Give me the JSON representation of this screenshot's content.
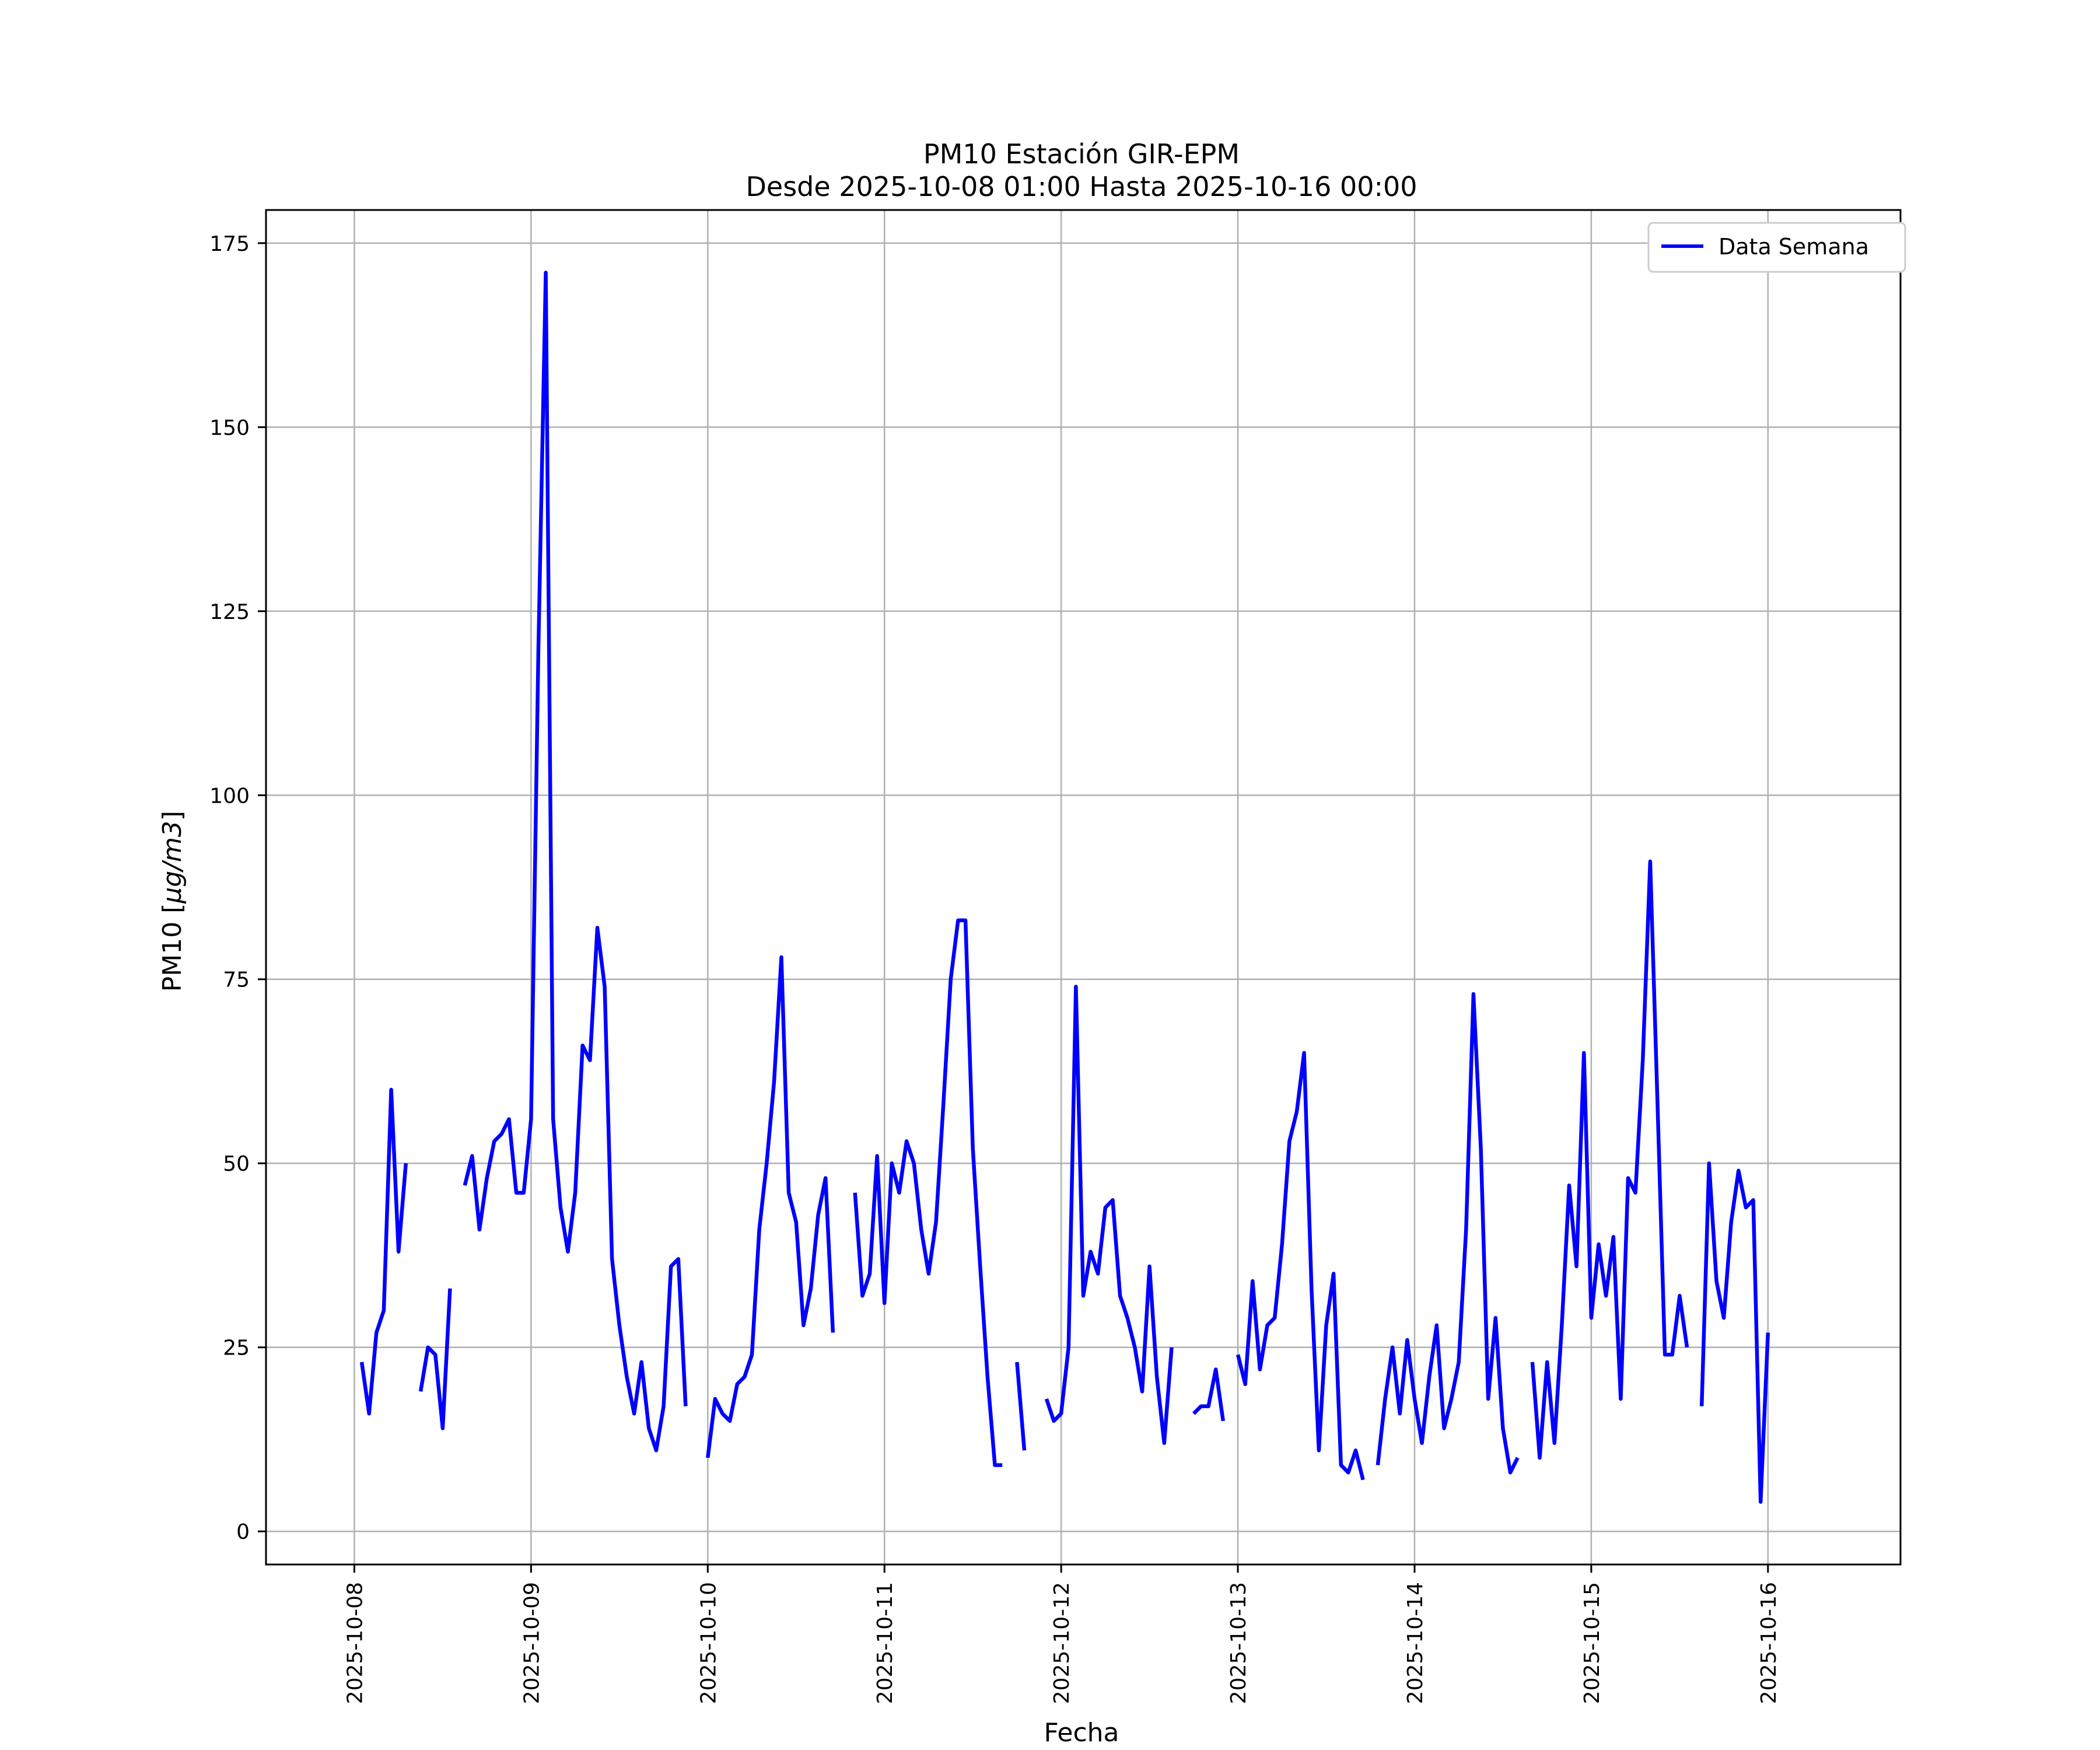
{
  "chart_data": {
    "type": "line",
    "title": "PM10 Estación GIR-EPM",
    "subtitle": "Desde 2025-10-08 01:00 Hasta 2025-10-16 00:00",
    "xlabel": "Fecha",
    "ylabel_prefix": "PM10 [",
    "ylabel_units": "μg/m3",
    "ylabel_suffix": "]",
    "x_ticks": [
      "2025-10-08",
      "2025-10-09",
      "2025-10-10",
      "2025-10-11",
      "2025-10-12",
      "2025-10-13",
      "2025-10-14",
      "2025-10-15",
      "2025-10-16"
    ],
    "y_ticks": [
      0,
      25,
      50,
      75,
      100,
      125,
      150,
      175
    ],
    "xlim": [
      "2025-10-07 12:00",
      "2025-10-16 18:00"
    ],
    "ylim": [
      -4.5,
      179.5
    ],
    "grid": true,
    "legend_position": "top-right",
    "series": [
      {
        "name": "Data Semana",
        "color": "#0000ff",
        "points": [
          [
            "2025-10-08 01:00",
            23
          ],
          [
            "2025-10-08 02:00",
            16
          ],
          [
            "2025-10-08 03:00",
            27
          ],
          [
            "2025-10-08 04:00",
            30
          ],
          [
            "2025-10-08 05:00",
            60
          ],
          [
            "2025-10-08 06:00",
            38
          ],
          [
            "2025-10-08 07:00",
            50
          ],
          [
            "2025-10-08 08:00",
            null
          ],
          [
            "2025-10-08 09:00",
            19
          ],
          [
            "2025-10-08 10:00",
            25
          ],
          [
            "2025-10-08 11:00",
            24
          ],
          [
            "2025-10-08 12:00",
            14
          ],
          [
            "2025-10-08 13:00",
            33
          ],
          [
            "2025-10-08 14:00",
            null
          ],
          [
            "2025-10-08 15:00",
            47
          ],
          [
            "2025-10-08 16:00",
            51
          ],
          [
            "2025-10-08 17:00",
            41
          ],
          [
            "2025-10-08 18:00",
            48
          ],
          [
            "2025-10-08 19:00",
            53
          ],
          [
            "2025-10-08 20:00",
            54
          ],
          [
            "2025-10-08 21:00",
            56
          ],
          [
            "2025-10-08 22:00",
            46
          ],
          [
            "2025-10-08 23:00",
            46
          ],
          [
            "2025-10-09 00:00",
            56
          ],
          [
            "2025-10-09 01:00",
            120
          ],
          [
            "2025-10-09 02:00",
            171
          ],
          [
            "2025-10-09 03:00",
            56
          ],
          [
            "2025-10-09 04:00",
            44
          ],
          [
            "2025-10-09 05:00",
            38
          ],
          [
            "2025-10-09 06:00",
            46
          ],
          [
            "2025-10-09 07:00",
            66
          ],
          [
            "2025-10-09 08:00",
            64
          ],
          [
            "2025-10-09 09:00",
            82
          ],
          [
            "2025-10-09 10:00",
            74
          ],
          [
            "2025-10-09 11:00",
            37
          ],
          [
            "2025-10-09 12:00",
            28
          ],
          [
            "2025-10-09 13:00",
            21
          ],
          [
            "2025-10-09 14:00",
            16
          ],
          [
            "2025-10-09 15:00",
            23
          ],
          [
            "2025-10-09 16:00",
            14
          ],
          [
            "2025-10-09 17:00",
            11
          ],
          [
            "2025-10-09 18:00",
            17
          ],
          [
            "2025-10-09 19:00",
            36
          ],
          [
            "2025-10-09 20:00",
            37
          ],
          [
            "2025-10-09 21:00",
            17
          ],
          [
            "2025-10-09 22:00",
            null
          ],
          [
            "2025-10-09 23:00",
            null
          ],
          [
            "2025-10-10 00:00",
            10
          ],
          [
            "2025-10-10 01:00",
            18
          ],
          [
            "2025-10-10 02:00",
            16
          ],
          [
            "2025-10-10 03:00",
            15
          ],
          [
            "2025-10-10 04:00",
            20
          ],
          [
            "2025-10-10 05:00",
            21
          ],
          [
            "2025-10-10 06:00",
            24
          ],
          [
            "2025-10-10 07:00",
            41
          ],
          [
            "2025-10-10 08:00",
            50
          ],
          [
            "2025-10-10 09:00",
            61
          ],
          [
            "2025-10-10 10:00",
            78
          ],
          [
            "2025-10-10 11:00",
            46
          ],
          [
            "2025-10-10 12:00",
            42
          ],
          [
            "2025-10-10 13:00",
            28
          ],
          [
            "2025-10-10 14:00",
            33
          ],
          [
            "2025-10-10 15:00",
            43
          ],
          [
            "2025-10-10 16:00",
            48
          ],
          [
            "2025-10-10 17:00",
            27
          ],
          [
            "2025-10-10 18:00",
            null
          ],
          [
            "2025-10-10 19:00",
            null
          ],
          [
            "2025-10-10 20:00",
            46
          ],
          [
            "2025-10-10 21:00",
            32
          ],
          [
            "2025-10-10 22:00",
            35
          ],
          [
            "2025-10-10 23:00",
            51
          ],
          [
            "2025-10-11 00:00",
            31
          ],
          [
            "2025-10-11 01:00",
            50
          ],
          [
            "2025-10-11 02:00",
            46
          ],
          [
            "2025-10-11 03:00",
            53
          ],
          [
            "2025-10-11 04:00",
            50
          ],
          [
            "2025-10-11 05:00",
            41
          ],
          [
            "2025-10-11 06:00",
            35
          ],
          [
            "2025-10-11 07:00",
            42
          ],
          [
            "2025-10-11 08:00",
            58
          ],
          [
            "2025-10-11 09:00",
            75
          ],
          [
            "2025-10-11 10:00",
            83
          ],
          [
            "2025-10-11 11:00",
            83
          ],
          [
            "2025-10-11 12:00",
            52
          ],
          [
            "2025-10-11 13:00",
            36
          ],
          [
            "2025-10-11 14:00",
            21
          ],
          [
            "2025-10-11 15:00",
            9
          ],
          [
            "2025-10-11 16:00",
            9
          ],
          [
            "2025-10-11 17:00",
            null
          ],
          [
            "2025-10-11 18:00",
            23
          ],
          [
            "2025-10-11 19:00",
            11
          ],
          [
            "2025-10-11 20:00",
            null
          ],
          [
            "2025-10-11 21:00",
            null
          ],
          [
            "2025-10-11 22:00",
            18
          ],
          [
            "2025-10-11 23:00",
            15
          ],
          [
            "2025-10-12 00:00",
            16
          ],
          [
            "2025-10-12 01:00",
            25
          ],
          [
            "2025-10-12 02:00",
            74
          ],
          [
            "2025-10-12 03:00",
            32
          ],
          [
            "2025-10-12 04:00",
            38
          ],
          [
            "2025-10-12 05:00",
            35
          ],
          [
            "2025-10-12 06:00",
            44
          ],
          [
            "2025-10-12 07:00",
            45
          ],
          [
            "2025-10-12 08:00",
            32
          ],
          [
            "2025-10-12 09:00",
            29
          ],
          [
            "2025-10-12 10:00",
            25
          ],
          [
            "2025-10-12 11:00",
            19
          ],
          [
            "2025-10-12 12:00",
            36
          ],
          [
            "2025-10-12 13:00",
            21
          ],
          [
            "2025-10-12 14:00",
            12
          ],
          [
            "2025-10-12 15:00",
            25
          ],
          [
            "2025-10-12 16:00",
            null
          ],
          [
            "2025-10-12 17:00",
            null
          ],
          [
            "2025-10-12 18:00",
            16
          ],
          [
            "2025-10-12 19:00",
            17
          ],
          [
            "2025-10-12 20:00",
            17
          ],
          [
            "2025-10-12 21:00",
            22
          ],
          [
            "2025-10-12 22:00",
            15
          ],
          [
            "2025-10-12 23:00",
            null
          ],
          [
            "2025-10-13 00:00",
            24
          ],
          [
            "2025-10-13 01:00",
            20
          ],
          [
            "2025-10-13 02:00",
            34
          ],
          [
            "2025-10-13 03:00",
            22
          ],
          [
            "2025-10-13 04:00",
            28
          ],
          [
            "2025-10-13 05:00",
            29
          ],
          [
            "2025-10-13 06:00",
            39
          ],
          [
            "2025-10-13 07:00",
            53
          ],
          [
            "2025-10-13 08:00",
            57
          ],
          [
            "2025-10-13 09:00",
            65
          ],
          [
            "2025-10-13 10:00",
            33
          ],
          [
            "2025-10-13 11:00",
            11
          ],
          [
            "2025-10-13 12:00",
            28
          ],
          [
            "2025-10-13 13:00",
            35
          ],
          [
            "2025-10-13 14:00",
            9
          ],
          [
            "2025-10-13 15:00",
            8
          ],
          [
            "2025-10-13 16:00",
            11
          ],
          [
            "2025-10-13 17:00",
            7
          ],
          [
            "2025-10-13 18:00",
            null
          ],
          [
            "2025-10-13 19:00",
            9
          ],
          [
            "2025-10-13 20:00",
            18
          ],
          [
            "2025-10-13 21:00",
            25
          ],
          [
            "2025-10-13 22:00",
            16
          ],
          [
            "2025-10-13 23:00",
            26
          ],
          [
            "2025-10-14 00:00",
            18
          ],
          [
            "2025-10-14 01:00",
            12
          ],
          [
            "2025-10-14 02:00",
            21
          ],
          [
            "2025-10-14 03:00",
            28
          ],
          [
            "2025-10-14 04:00",
            14
          ],
          [
            "2025-10-14 05:00",
            18
          ],
          [
            "2025-10-14 06:00",
            23
          ],
          [
            "2025-10-14 07:00",
            41
          ],
          [
            "2025-10-14 08:00",
            73
          ],
          [
            "2025-10-14 09:00",
            52
          ],
          [
            "2025-10-14 10:00",
            18
          ],
          [
            "2025-10-14 11:00",
            29
          ],
          [
            "2025-10-14 12:00",
            14
          ],
          [
            "2025-10-14 13:00",
            8
          ],
          [
            "2025-10-14 14:00",
            10
          ],
          [
            "2025-10-14 15:00",
            null
          ],
          [
            "2025-10-14 16:00",
            23
          ],
          [
            "2025-10-14 17:00",
            10
          ],
          [
            "2025-10-14 18:00",
            23
          ],
          [
            "2025-10-14 19:00",
            12
          ],
          [
            "2025-10-14 20:00",
            28
          ],
          [
            "2025-10-14 21:00",
            47
          ],
          [
            "2025-10-14 22:00",
            36
          ],
          [
            "2025-10-14 23:00",
            65
          ],
          [
            "2025-10-15 00:00",
            29
          ],
          [
            "2025-10-15 01:00",
            39
          ],
          [
            "2025-10-15 02:00",
            32
          ],
          [
            "2025-10-15 03:00",
            40
          ],
          [
            "2025-10-15 04:00",
            18
          ],
          [
            "2025-10-15 05:00",
            48
          ],
          [
            "2025-10-15 06:00",
            46
          ],
          [
            "2025-10-15 07:00",
            64
          ],
          [
            "2025-10-15 08:00",
            91
          ],
          [
            "2025-10-15 09:00",
            58
          ],
          [
            "2025-10-15 10:00",
            24
          ],
          [
            "2025-10-15 11:00",
            24
          ],
          [
            "2025-10-15 12:00",
            32
          ],
          [
            "2025-10-15 13:00",
            25
          ],
          [
            "2025-10-15 14:00",
            null
          ],
          [
            "2025-10-15 15:00",
            17
          ],
          [
            "2025-10-15 16:00",
            50
          ],
          [
            "2025-10-15 17:00",
            34
          ],
          [
            "2025-10-15 18:00",
            29
          ],
          [
            "2025-10-15 19:00",
            42
          ],
          [
            "2025-10-15 20:00",
            49
          ],
          [
            "2025-10-15 21:00",
            44
          ],
          [
            "2025-10-15 22:00",
            45
          ],
          [
            "2025-10-15 23:00",
            4
          ],
          [
            "2025-10-16 00:00",
            27
          ]
        ]
      }
    ]
  }
}
